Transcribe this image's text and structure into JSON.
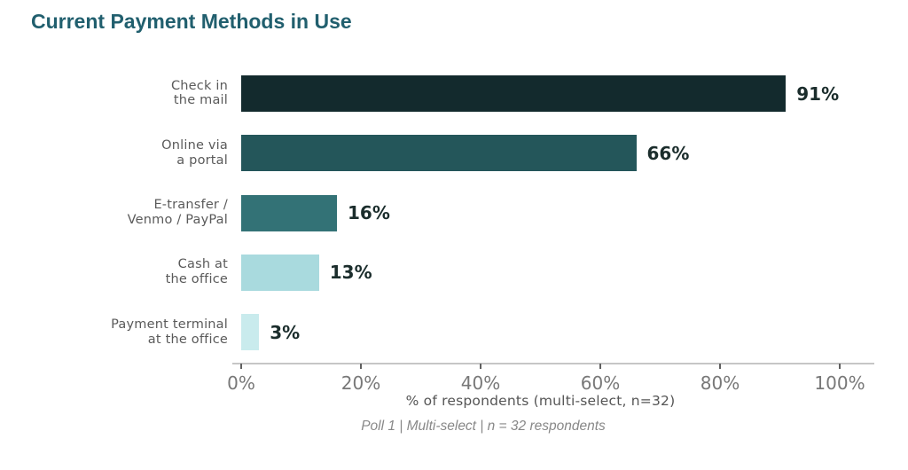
{
  "title": {
    "text": "Current Payment Methods in Use",
    "color": "#215f6e"
  },
  "chart_data": {
    "type": "bar",
    "orientation": "horizontal",
    "title": "Current Payment Methods in Use",
    "categories": [
      "Check in the mail",
      "Online via a portal",
      "E-transfer / Venmo / PayPal",
      "Cash at the office",
      "Payment terminal at the office"
    ],
    "label_lines": [
      [
        "Check in",
        "the mail"
      ],
      [
        "Online via",
        "a portal"
      ],
      [
        "E-transfer /",
        "Venmo / PayPal"
      ],
      [
        "Cash at",
        "the office"
      ],
      [
        "Payment terminal",
        "at the office"
      ]
    ],
    "values": [
      91,
      66,
      16,
      13,
      3
    ],
    "value_labels": [
      "91%",
      "66%",
      "16%",
      "13%",
      "3%"
    ],
    "bar_colors": [
      "#132a2d",
      "#24565a",
      "#337276",
      "#a9dade",
      "#c9ebed"
    ],
    "xlabel": "% of respondents (multi-select, n=32)",
    "xlim": [
      0,
      100
    ],
    "tick_values": [
      0,
      20,
      40,
      60,
      80,
      100
    ],
    "tick_labels": [
      "0%",
      "20%",
      "40%",
      "60%",
      "80%",
      "100%"
    ],
    "legend": "none",
    "grid": "off",
    "footnote": "Poll 1 | Multi-select | n = 32 respondents",
    "colors": {
      "value_label": "#1b2d2c",
      "category_label": "#5a5a5a",
      "axis_spine": "#c6c6c6",
      "tick_mark": "#606060",
      "tick_label": "#787878",
      "xlabel_text": "#555555",
      "footnote_text": "#888888"
    }
  }
}
